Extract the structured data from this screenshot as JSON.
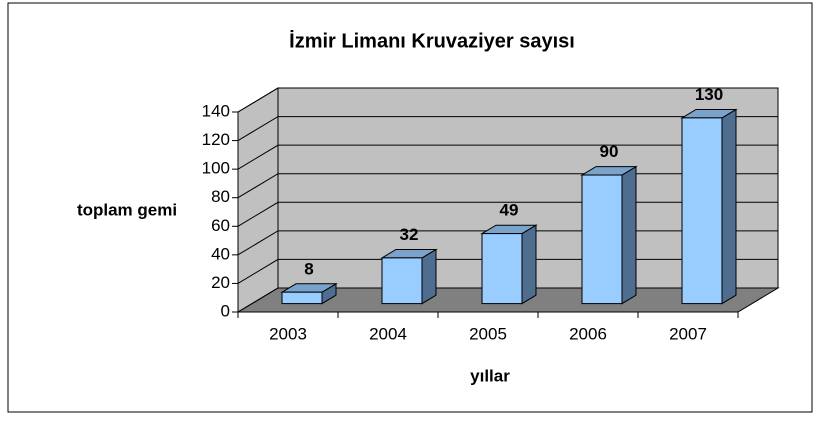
{
  "chart_data": {
    "type": "bar3d",
    "title": "İzmir Limanı Kruvaziyer sayısı",
    "categories": [
      "2003",
      "2004",
      "2005",
      "2006",
      "2007"
    ],
    "values": [
      8,
      32,
      49,
      90,
      130
    ],
    "ylim": [
      0,
      140
    ],
    "yticks": [
      0,
      20,
      40,
      60,
      80,
      100,
      120,
      140
    ],
    "ylabel": "toplam gemi",
    "xlabel": "yıllar",
    "color": "#99ccff",
    "grid": true
  }
}
